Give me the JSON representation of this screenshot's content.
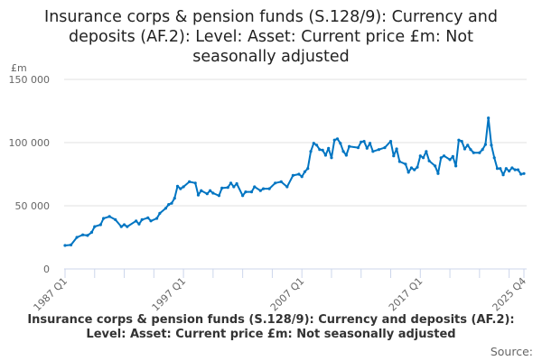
{
  "chart_data": {
    "type": "line",
    "title": "Insurance corps & pension funds (S.128/9): Currency and deposits (AF.2): Level: Asset: Current price £m: Not seasonally adjusted",
    "ylabel": "£m",
    "xlabel": "",
    "ylim": [
      0,
      150000
    ],
    "xlim": [
      1987.0,
      2025.75
    ],
    "yticks": [
      {
        "v": 0,
        "label": "0"
      },
      {
        "v": 50000,
        "label": "50 000"
      },
      {
        "v": 100000,
        "label": "100 000"
      },
      {
        "v": 150000,
        "label": "150 000"
      }
    ],
    "xticks": [
      {
        "v": 1987.0,
        "label": "1987 Q1"
      },
      {
        "v": 1997.0,
        "label": "1997 Q1"
      },
      {
        "v": 2007.0,
        "label": "2007 Q1"
      },
      {
        "v": 2017.0,
        "label": "2017 Q1"
      },
      {
        "v": 2025.75,
        "label": "2025 Q4"
      }
    ],
    "minor_xticks": [
      1989.5,
      1992,
      1994.5,
      1999.5,
      2002,
      2004.5,
      2009.5,
      2012,
      2014.5,
      2019.5,
      2022,
      2024.5
    ],
    "grid": true,
    "color": "#0075c2",
    "series": [
      {
        "name": "Currency and deposits",
        "points": [
          [
            1987.0,
            18600
          ],
          [
            1987.5,
            19000
          ],
          [
            1988.0,
            25000
          ],
          [
            1988.5,
            27000
          ],
          [
            1988.9,
            26500
          ],
          [
            1989.25,
            29000
          ],
          [
            1989.5,
            33500
          ],
          [
            1990.0,
            35000
          ],
          [
            1990.25,
            40000
          ],
          [
            1990.75,
            41500
          ],
          [
            1991.25,
            39000
          ],
          [
            1991.75,
            33500
          ],
          [
            1992.0,
            35000
          ],
          [
            1992.25,
            33500
          ],
          [
            1993.0,
            38000
          ],
          [
            1993.25,
            35500
          ],
          [
            1993.5,
            39000
          ],
          [
            1994.0,
            40500
          ],
          [
            1994.25,
            38000
          ],
          [
            1994.75,
            40000
          ],
          [
            1995.0,
            44000
          ],
          [
            1995.5,
            48000
          ],
          [
            1995.75,
            51000
          ],
          [
            1996.0,
            52000
          ],
          [
            1996.25,
            56000
          ],
          [
            1996.5,
            65500
          ],
          [
            1996.75,
            63500
          ],
          [
            1997.0,
            65000
          ],
          [
            1997.5,
            69000
          ],
          [
            1998.0,
            68000
          ],
          [
            1998.25,
            58500
          ],
          [
            1998.5,
            62000
          ],
          [
            1999.0,
            59500
          ],
          [
            1999.25,
            62000
          ],
          [
            1999.5,
            60000
          ],
          [
            2000.0,
            58000
          ],
          [
            2000.25,
            64000
          ],
          [
            2000.75,
            64500
          ],
          [
            2001.0,
            68000
          ],
          [
            2001.25,
            65000
          ],
          [
            2001.5,
            67500
          ],
          [
            2002.0,
            58000
          ],
          [
            2002.25,
            61000
          ],
          [
            2002.75,
            61000
          ],
          [
            2003.0,
            65000
          ],
          [
            2003.5,
            62000
          ],
          [
            2003.75,
            63500
          ],
          [
            2004.25,
            63500
          ],
          [
            2004.75,
            68000
          ],
          [
            2005.25,
            69000
          ],
          [
            2005.75,
            65000
          ],
          [
            2006.25,
            74000
          ],
          [
            2006.75,
            75000
          ],
          [
            2007.0,
            73000
          ],
          [
            2007.25,
            77000
          ],
          [
            2007.5,
            79500
          ],
          [
            2007.75,
            93000
          ],
          [
            2008.0,
            99500
          ],
          [
            2008.25,
            98000
          ],
          [
            2008.5,
            94500
          ],
          [
            2008.75,
            94000
          ],
          [
            2009.0,
            90000
          ],
          [
            2009.25,
            95500
          ],
          [
            2009.5,
            88000
          ],
          [
            2009.75,
            102000
          ],
          [
            2010.0,
            103000
          ],
          [
            2010.25,
            99500
          ],
          [
            2010.5,
            93000
          ],
          [
            2010.75,
            90000
          ],
          [
            2011.0,
            97000
          ],
          [
            2011.75,
            96000
          ],
          [
            2012.0,
            100500
          ],
          [
            2012.25,
            101000
          ],
          [
            2012.5,
            95500
          ],
          [
            2012.75,
            99500
          ],
          [
            2013.0,
            93000
          ],
          [
            2013.5,
            94500
          ],
          [
            2014.0,
            96000
          ],
          [
            2014.5,
            101000
          ],
          [
            2014.75,
            89500
          ],
          [
            2015.0,
            95000
          ],
          [
            2015.25,
            85000
          ],
          [
            2015.75,
            83000
          ],
          [
            2016.0,
            76500
          ],
          [
            2016.25,
            80000
          ],
          [
            2016.5,
            78500
          ],
          [
            2016.75,
            80500
          ],
          [
            2017.0,
            89500
          ],
          [
            2017.25,
            88000
          ],
          [
            2017.5,
            93000
          ],
          [
            2017.75,
            85500
          ],
          [
            2018.25,
            81500
          ],
          [
            2018.5,
            75500
          ],
          [
            2018.75,
            88000
          ],
          [
            2019.0,
            89500
          ],
          [
            2019.5,
            86500
          ],
          [
            2019.75,
            89000
          ],
          [
            2020.0,
            81500
          ],
          [
            2020.25,
            102000
          ],
          [
            2020.5,
            101000
          ],
          [
            2020.75,
            95000
          ],
          [
            2021.0,
            98000
          ],
          [
            2021.25,
            94500
          ],
          [
            2021.5,
            92000
          ],
          [
            2022.0,
            92000
          ],
          [
            2022.25,
            94500
          ],
          [
            2022.5,
            98500
          ],
          [
            2022.75,
            119500
          ],
          [
            2023.0,
            98000
          ],
          [
            2023.25,
            88000
          ],
          [
            2023.5,
            79500
          ],
          [
            2023.75,
            79500
          ],
          [
            2024.0,
            74500
          ],
          [
            2024.25,
            79500
          ],
          [
            2024.5,
            77500
          ],
          [
            2024.75,
            80000
          ],
          [
            2025.0,
            78500
          ],
          [
            2025.25,
            78500
          ],
          [
            2025.5,
            75000
          ],
          [
            2025.75,
            75500
          ]
        ]
      }
    ],
    "caption": "Insurance corps & pension funds (S.128/9): Currency and deposits (AF.2): Level: Asset: Current price £m: Not seasonally adjusted",
    "source": "Source:"
  }
}
